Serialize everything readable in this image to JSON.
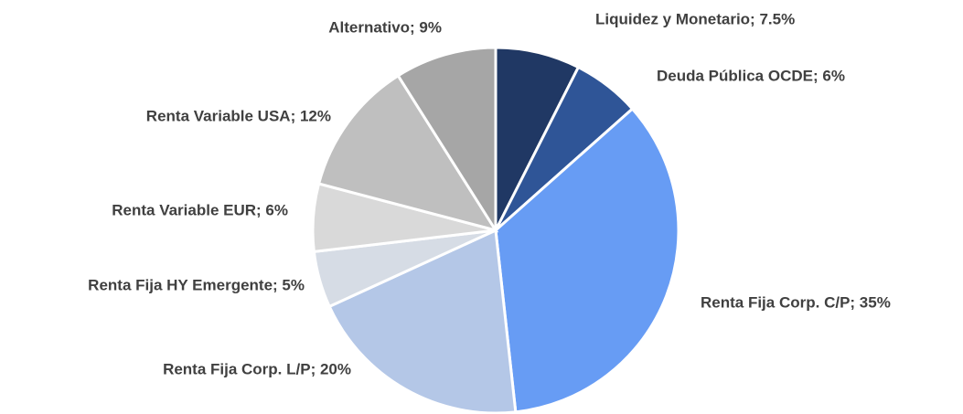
{
  "chart_data": {
    "type": "pie",
    "categories": [
      "Liquidez y Monetario; 7.5%",
      "Deuda Pública OCDE; 6%",
      "Renta Fija Corp. C/P; 35%",
      "Renta Fija Corp. L/P; 20%",
      "Renta Fija HY Emergente; 5%",
      "Renta Variable EUR; 6%",
      "Renta Variable USA; 12%",
      "Alternativo; 9%"
    ],
    "values": [
      7.5,
      6,
      35,
      20,
      5,
      6,
      12,
      9
    ],
    "colors": [
      "#203864",
      "#2f5597",
      "#679cf4",
      "#b4c7e7",
      "#d6dce5",
      "#d9d9d9",
      "#bfbfbf",
      "#a6a6a6"
    ]
  }
}
